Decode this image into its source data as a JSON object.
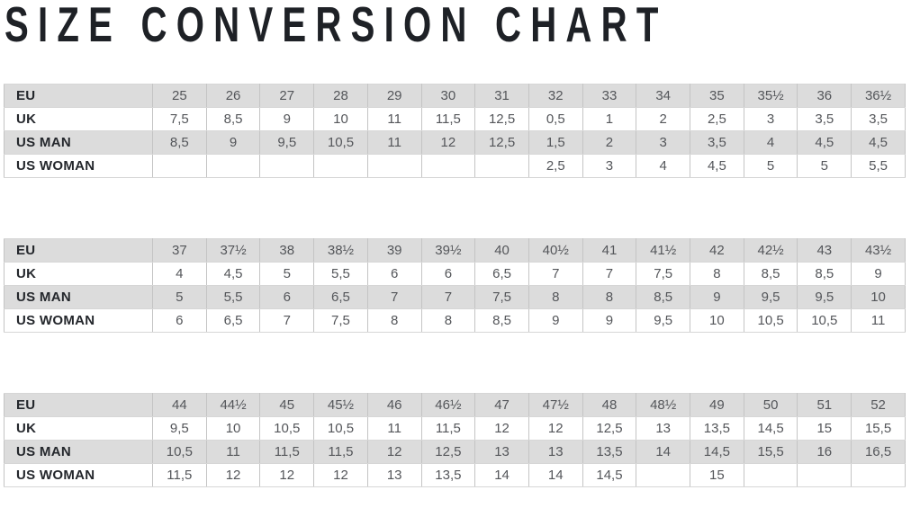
{
  "title": "SIZE CONVERSION CHART",
  "colors": {
    "row_shaded": "#dcdcdc",
    "row_plain": "#ffffff",
    "border_vertical": "#c4c4c4",
    "border_horizontal": "#d6d6d6",
    "label_text": "#24272c",
    "value_text": "#54565a",
    "title_text": "#1e2126"
  },
  "tables": [
    {
      "name": "sizes-eu-25-to-36half",
      "rows": [
        {
          "label": "EU",
          "values": [
            "25",
            "26",
            "27",
            "28",
            "29",
            "30",
            "31",
            "32",
            "33",
            "34",
            "35",
            "35½",
            "36",
            "36½"
          ]
        },
        {
          "label": "UK",
          "values": [
            "7,5",
            "8,5",
            "9",
            "10",
            "11",
            "11,5",
            "12,5",
            "0,5",
            "1",
            "2",
            "2,5",
            "3",
            "3,5",
            "3,5"
          ]
        },
        {
          "label": "US MAN",
          "values": [
            "8,5",
            "9",
            "9,5",
            "10,5",
            "11",
            "12",
            "12,5",
            "1,5",
            "2",
            "3",
            "3,5",
            "4",
            "4,5",
            "4,5"
          ]
        },
        {
          "label": "US WOMAN",
          "values": [
            "",
            "",
            "",
            "",
            "",
            "",
            "",
            "2,5",
            "3",
            "4",
            "4,5",
            "5",
            "5",
            "5,5"
          ]
        }
      ]
    },
    {
      "name": "sizes-eu-37-to-43half",
      "rows": [
        {
          "label": "EU",
          "values": [
            "37",
            "37½",
            "38",
            "38½",
            "39",
            "39½",
            "40",
            "40½",
            "41",
            "41½",
            "42",
            "42½",
            "43",
            "43½"
          ]
        },
        {
          "label": "UK",
          "values": [
            "4",
            "4,5",
            "5",
            "5,5",
            "6",
            "6",
            "6,5",
            "7",
            "7",
            "7,5",
            "8",
            "8,5",
            "8,5",
            "9"
          ]
        },
        {
          "label": "US MAN",
          "values": [
            "5",
            "5,5",
            "6",
            "6,5",
            "7",
            "7",
            "7,5",
            "8",
            "8",
            "8,5",
            "9",
            "9,5",
            "9,5",
            "10"
          ]
        },
        {
          "label": "US WOMAN",
          "values": [
            "6",
            "6,5",
            "7",
            "7,5",
            "8",
            "8",
            "8,5",
            "9",
            "9",
            "9,5",
            "10",
            "10,5",
            "10,5",
            "11"
          ]
        }
      ]
    },
    {
      "name": "sizes-eu-44-to-52",
      "rows": [
        {
          "label": "EU",
          "values": [
            "44",
            "44½",
            "45",
            "45½",
            "46",
            "46½",
            "47",
            "47½",
            "48",
            "48½",
            "49",
            "50",
            "51",
            "52"
          ]
        },
        {
          "label": "UK",
          "values": [
            "9,5",
            "10",
            "10,5",
            "10,5",
            "11",
            "11,5",
            "12",
            "12",
            "12,5",
            "13",
            "13,5",
            "14,5",
            "15",
            "15,5"
          ]
        },
        {
          "label": "US MAN",
          "values": [
            "10,5",
            "11",
            "11,5",
            "11,5",
            "12",
            "12,5",
            "13",
            "13",
            "13,5",
            "14",
            "14,5",
            "15,5",
            "16",
            "16,5"
          ]
        },
        {
          "label": "US WOMAN",
          "values": [
            "11,5",
            "12",
            "12",
            "12",
            "13",
            "13,5",
            "14",
            "14",
            "14,5",
            "",
            "15",
            "",
            "",
            ""
          ]
        }
      ]
    }
  ]
}
